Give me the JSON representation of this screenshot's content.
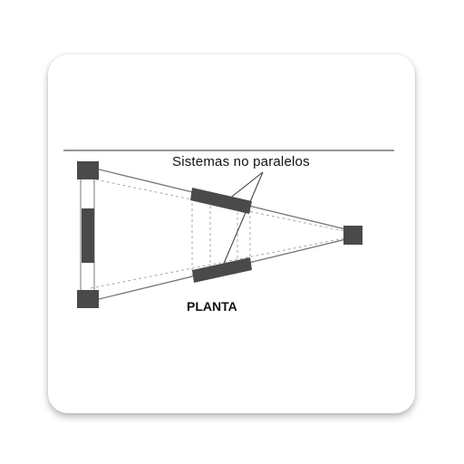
{
  "diagram": {
    "label_top": "Sistemas no paralelos",
    "label_bottom": "PLANTA"
  },
  "colors": {
    "block": "#4a4a4a",
    "line": "#6a6a6a",
    "dashed": "#9a9a9a",
    "card": "#ffffff"
  }
}
